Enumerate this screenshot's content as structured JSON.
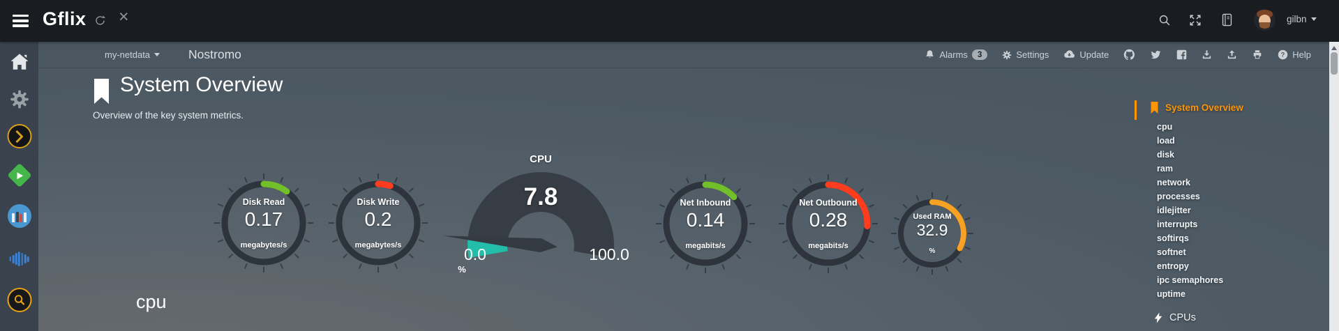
{
  "topbar": {
    "brand": "Gflix",
    "username": "gilbn"
  },
  "navbar": {
    "host_dropdown": "my-netdata",
    "hostname": "Nostromo",
    "alarms_label": "Alarms",
    "alarms_count": "3",
    "settings_label": "Settings",
    "update_label": "Update",
    "help_label": "Help"
  },
  "header": {
    "title": "System Overview",
    "subtitle": "Overview of the key system metrics."
  },
  "section_title": "cpu",
  "gauges": [
    {
      "title": "Disk Read",
      "value": "0.17",
      "unit": "megabytes/s",
      "color": "#72bf2a",
      "percent": 10
    },
    {
      "title": "Disk Write",
      "value": "0.2",
      "unit": "megabytes/s",
      "color": "#ff3c1e",
      "percent": 5
    },
    {
      "title": "Net Inbound",
      "value": "0.14",
      "unit": "megabits/s",
      "color": "#72bf2a",
      "percent": 13
    },
    {
      "title": "Net Outbound",
      "value": "0.28",
      "unit": "megabits/s",
      "color": "#ff3c1e",
      "percent": 26
    },
    {
      "title": "Used RAM",
      "value": "32.9",
      "unit": "%",
      "color": "#f9a122",
      "percent": 32.9
    }
  ],
  "cpu_gauge": {
    "title": "CPU",
    "value": "7.8",
    "min": "0.0",
    "max": "100.0",
    "unit": "%",
    "color": "#23bda9",
    "percent": 7.8
  },
  "right_nav": {
    "active_label": "System Overview",
    "items": [
      "cpu",
      "load",
      "disk",
      "ram",
      "network",
      "processes",
      "idlejitter",
      "interrupts",
      "softirqs",
      "softnet",
      "entropy",
      "ipc semaphores",
      "uptime"
    ],
    "cpus_label": "CPUs"
  },
  "icons": {
    "topbar_left": [
      "hamburger-icon",
      "refresh-icon",
      "close-icon"
    ],
    "topbar_right": [
      "search-icon",
      "expand-icon",
      "book-icon",
      "avatar"
    ],
    "navbar": [
      "bell-icon",
      "gear-icon",
      "cloud-download-icon",
      "github-icon",
      "twitter-icon",
      "facebook-icon",
      "download-icon",
      "upload-icon",
      "print-icon",
      "help-icon"
    ],
    "left_sidebar": [
      "home-icon",
      "gear-icon",
      "plex-icon",
      "emby-icon",
      "library-icon",
      "soundwave-icon",
      "search-circle-icon"
    ],
    "right_nav": [
      "bookmark-icon",
      "bolt-icon"
    ]
  },
  "colors": {
    "accent_orange": "#ff9502",
    "gauge_green": "#72bf2a",
    "gauge_red": "#ff3c1e",
    "gauge_orange": "#f9a122",
    "gauge_teal": "#23bda9",
    "gauge_ring": "#2e343b",
    "cpu_fan": "#373d44",
    "topbar_bg": "#191c21",
    "navbar_bg": "#4a5761"
  }
}
